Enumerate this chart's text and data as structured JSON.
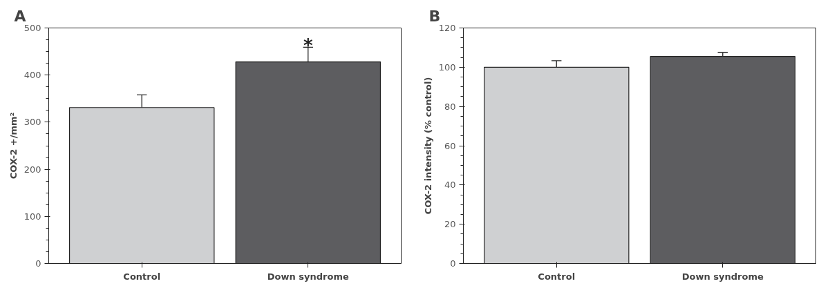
{
  "chart_data": [
    {
      "type": "bar",
      "title": "A",
      "ylabel": "COX-2 +/mm²",
      "categories": [
        "Control",
        "Down syndrome"
      ],
      "values": [
        331,
        428
      ],
      "colors": [
        "#cfd0d2",
        "#5d5d60"
      ],
      "errors": [
        [
          331,
          358
        ],
        [
          428,
          459
        ]
      ],
      "ylim": [
        0,
        500
      ],
      "yticks": [
        0,
        100,
        200,
        300,
        400,
        500
      ],
      "grid": false,
      "annotations": [
        {
          "text": "*",
          "x": "Down syndrome",
          "y": 462
        }
      ]
    },
    {
      "type": "bar",
      "title": "B",
      "ylabel": "COX-2 intensity (% control)",
      "categories": [
        "Control",
        "Down syndrome"
      ],
      "values": [
        100,
        105.5
      ],
      "colors": [
        "#cfd0d2",
        "#5d5d60"
      ],
      "errors": [
        [
          100,
          103.3
        ],
        [
          105.5,
          107.5
        ]
      ],
      "ylim": [
        0,
        120
      ],
      "yticks": [
        0,
        20,
        40,
        60,
        80,
        100,
        120
      ],
      "grid": false
    }
  ]
}
